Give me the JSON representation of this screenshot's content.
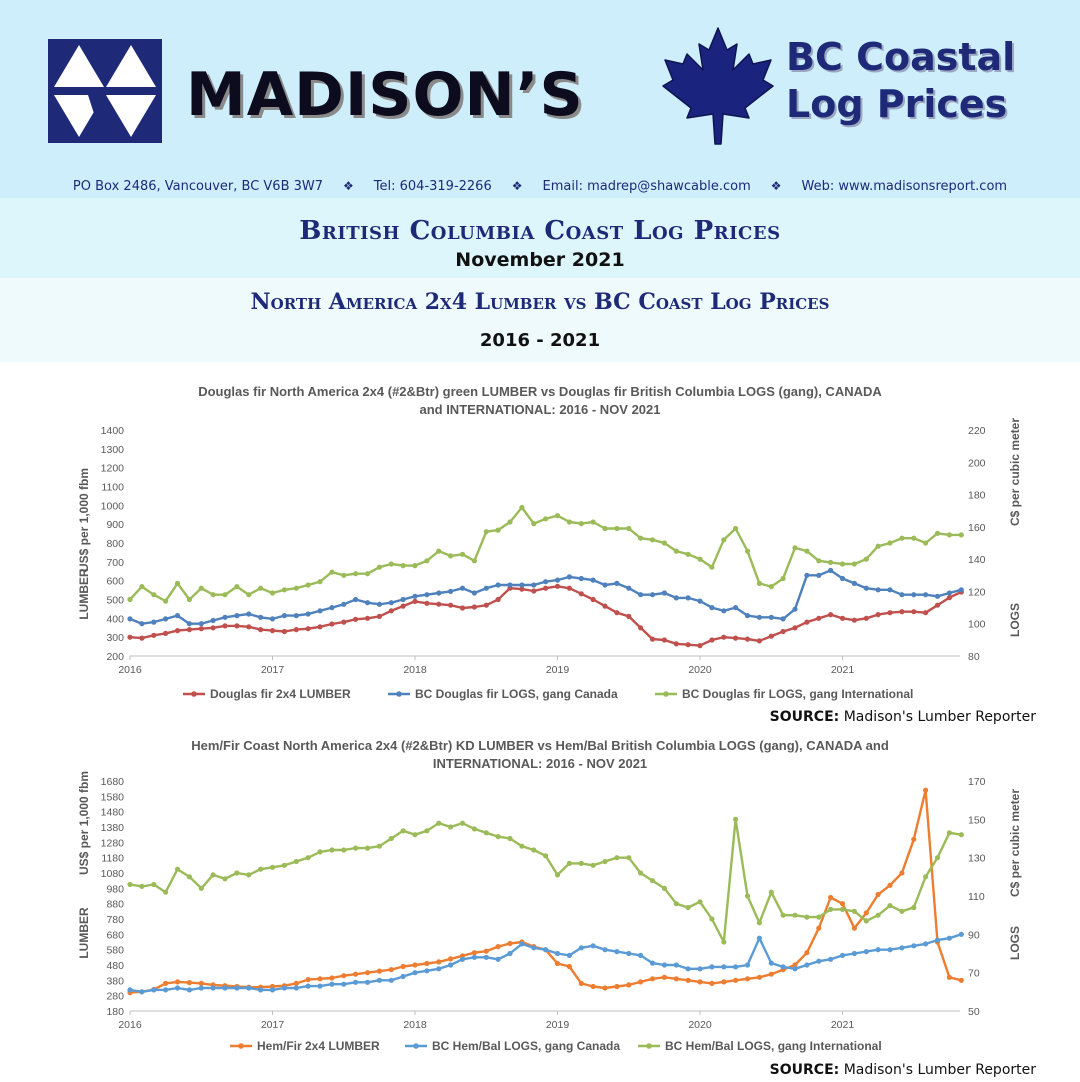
{
  "header": {
    "brand": "MADISON’S",
    "report_title_line1": "BC Coastal",
    "report_title_line2": "Log Prices",
    "contact": {
      "address": "PO Box 2486, Vancouver, BC  V6B 3W7",
      "tel": "Tel: 604-319-2266",
      "email": "Email: madrep@shawcable.com",
      "web": "Web: www.madisonsreport.com",
      "separator": "❖"
    },
    "icons": {
      "logo": "madison-triangles-logo",
      "leaf": "maple-leaf-icon"
    },
    "colors": {
      "band": "#cdeefa",
      "navy": "#1e2a78"
    }
  },
  "titles": {
    "main": "British Columbia Coast Log Prices",
    "date": "November 2021",
    "sub": "North America 2x4 Lumber vs BC Coast Log Prices",
    "years": "2016 - 2021"
  },
  "chart_data": [
    {
      "type": "line",
      "title_line1": "Douglas fir North America 2x4 (#2&Btr) green LUMBER vs Douglas fir British Columbia LOGS (gang), CANADA",
      "title_line2": "and INTERNATIONAL: 2016 - NOV 2021",
      "ylabel_left": "US$ per 1,000 fbm",
      "ylabel_left_bottom": "LUMBER",
      "ylabel_right": "C$ per cubic meter",
      "ylabel_right_bottom": "LOGS",
      "ylim_left": [
        200,
        1400
      ],
      "yticks_left": [
        200,
        300,
        400,
        500,
        600,
        700,
        800,
        900,
        1000,
        1100,
        1200,
        1300,
        1400
      ],
      "ylim_right": [
        80,
        220
      ],
      "yticks_right": [
        80,
        100,
        120,
        140,
        160,
        180,
        200,
        220
      ],
      "xticks": [
        "2016",
        "2017",
        "2018",
        "2019",
        "2020",
        "2021"
      ],
      "start_year": 2016,
      "months": 71,
      "legend_position": "bottom",
      "source_label": "SOURCE:",
      "source_name": "Madison's Lumber Reporter",
      "series": [
        {
          "name": "Douglas fir 2x4 LUMBER",
          "axis": "left",
          "color": "#c0504d",
          "values": [
            300,
            295,
            310,
            320,
            335,
            340,
            345,
            350,
            360,
            360,
            355,
            340,
            335,
            330,
            340,
            345,
            355,
            370,
            380,
            395,
            400,
            410,
            440,
            465,
            490,
            480,
            475,
            470,
            455,
            460,
            470,
            500,
            560,
            555,
            545,
            560,
            570,
            560,
            530,
            500,
            465,
            430,
            410,
            350,
            290,
            285,
            265,
            260,
            255,
            285,
            300,
            295,
            290,
            280,
            305,
            330,
            350,
            380,
            400,
            420,
            400,
            390,
            400,
            420,
            430,
            435,
            435,
            430,
            470,
            510,
            540
          ]
        },
        {
          "name": "BC Douglas fir LOGS, gang Canada",
          "axis": "right",
          "color": "#4f81bd",
          "values": [
            103,
            100,
            101,
            103,
            105,
            100,
            100,
            102,
            104,
            105,
            106,
            104,
            103,
            105,
            105,
            106,
            108,
            110,
            112,
            115,
            113,
            112,
            113,
            115,
            117,
            118,
            119,
            120,
            122,
            119,
            122,
            124,
            124,
            124,
            124,
            126,
            127,
            129,
            128,
            127,
            124,
            125,
            122,
            118,
            118,
            119,
            116,
            116,
            114,
            110,
            108,
            110,
            105,
            104,
            104,
            103,
            109,
            130,
            130,
            133,
            128,
            125,
            122,
            121,
            121,
            118,
            118,
            118,
            117,
            119,
            121
          ]
        },
        {
          "name": "BC Douglas fir LOGS, gang International",
          "axis": "right",
          "color": "#9bbb59",
          "values": [
            115,
            123,
            118,
            114,
            125,
            115,
            122,
            118,
            118,
            123,
            118,
            122,
            119,
            121,
            122,
            124,
            126,
            132,
            130,
            131,
            131,
            135,
            137,
            136,
            136,
            139,
            145,
            142,
            143,
            139,
            157,
            158,
            163,
            172,
            162,
            165,
            167,
            163,
            162,
            163,
            159,
            159,
            159,
            153,
            152,
            150,
            145,
            143,
            140,
            135,
            152,
            159,
            145,
            125,
            123,
            128,
            147,
            145,
            139,
            138,
            137,
            137,
            140,
            148,
            150,
            153,
            153,
            150,
            156,
            155,
            155
          ]
        }
      ]
    },
    {
      "type": "line",
      "title_line1": "Hem/Fir Coast North America 2x4 (#2&Btr) KD LUMBER vs Hem/Bal British Columbia LOGS (gang), CANADA and",
      "title_line2": "INTERNATIONAL: 2016 - NOV 2021",
      "ylabel_left": "US$ per 1,000 fbm",
      "ylabel_left_bottom": "LUMBER",
      "ylabel_right": "C$ per cubic meter",
      "ylabel_right_bottom": "LOGS",
      "ylim_left": [
        180,
        1680
      ],
      "yticks_left": [
        180,
        280,
        380,
        480,
        580,
        680,
        780,
        880,
        980,
        1080,
        1180,
        1280,
        1380,
        1480,
        1580,
        1680
      ],
      "ylim_right": [
        50,
        170
      ],
      "yticks_right": [
        50,
        70,
        90,
        110,
        130,
        150,
        170
      ],
      "xticks": [
        "2016",
        "2017",
        "2018",
        "2019",
        "2020",
        "2021"
      ],
      "start_year": 2016,
      "months": 71,
      "legend_position": "bottom",
      "source_label": "SOURCE:",
      "source_name": "Madison's Lumber Reporter",
      "series": [
        {
          "name": "Hem/Fir 2x4 LUMBER",
          "axis": "left",
          "color": "#ed7d31",
          "values": [
            300,
            305,
            320,
            360,
            370,
            365,
            360,
            350,
            345,
            340,
            335,
            335,
            340,
            345,
            360,
            385,
            390,
            395,
            410,
            420,
            430,
            440,
            450,
            470,
            480,
            490,
            500,
            520,
            540,
            560,
            570,
            600,
            620,
            630,
            600,
            580,
            490,
            470,
            360,
            340,
            330,
            340,
            350,
            370,
            390,
            400,
            390,
            380,
            370,
            360,
            370,
            380,
            390,
            400,
            420,
            450,
            480,
            560,
            720,
            920,
            880,
            720,
            820,
            940,
            1000,
            1080,
            1300,
            1620,
            630,
            400,
            380
          ]
        },
        {
          "name": "BC Hem/Bal LOGS, gang Canada",
          "axis": "right",
          "color": "#5b9bd5",
          "values": [
            61,
            60,
            61,
            61,
            62,
            61,
            62,
            62,
            62,
            62,
            62,
            61,
            61,
            62,
            62,
            63,
            63,
            64,
            64,
            65,
            65,
            66,
            66,
            68,
            70,
            71,
            72,
            74,
            77,
            78,
            78,
            77,
            80,
            85,
            83,
            82,
            80,
            79,
            83,
            84,
            82,
            81,
            80,
            79,
            75,
            74,
            74,
            72,
            72,
            73,
            73,
            73,
            74,
            88,
            75,
            73,
            72,
            74,
            76,
            77,
            79,
            80,
            81,
            82,
            82,
            83,
            84,
            85,
            87,
            88,
            90
          ]
        },
        {
          "name": "BC Hem/Bal LOGS, gang International",
          "axis": "right",
          "color": "#9bbb59",
          "values": [
            116,
            115,
            116,
            112,
            124,
            120,
            114,
            121,
            119,
            122,
            121,
            124,
            125,
            126,
            128,
            130,
            133,
            134,
            134,
            135,
            135,
            136,
            140,
            144,
            142,
            144,
            148,
            146,
            148,
            145,
            143,
            141,
            140,
            136,
            134,
            131,
            121,
            127,
            127,
            126,
            128,
            130,
            130,
            122,
            118,
            114,
            106,
            104,
            107,
            98,
            86,
            150,
            110,
            96,
            112,
            100,
            100,
            99,
            99,
            103,
            103,
            102,
            97,
            100,
            105,
            102,
            104,
            120,
            130,
            143,
            142
          ]
        }
      ]
    }
  ]
}
